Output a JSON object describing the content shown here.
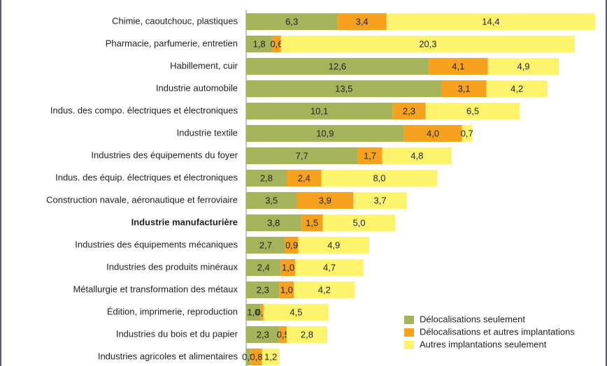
{
  "chart_data": {
    "type": "stacked-bar-horizontal",
    "categories": [
      "Chimie, caoutchouc, plastiques",
      "Pharmacie, parfumerie, entretien",
      "Habillement, cuir",
      "Industrie automobile",
      "Indus. des compo. électriques et électroniques",
      "Industrie textile",
      "Industries des équipements du foyer",
      "Indus. des équip. électriques et électroniques",
      "Construction navale, aéronautique et ferroviaire",
      "Industrie manufacturière",
      "Industries des équipements mécaniques",
      "Industries des produits minéraux",
      "Métallurgie et transformation des métaux",
      "Édition, imprimerie, reproduction",
      "Industries du bois et du papier",
      "Industries agricoles et alimentaires"
    ],
    "bold_category": 9,
    "legend": "bottom-right",
    "series": [
      {
        "name": "Délocalisations seulement",
        "color": "#a3b45a",
        "values": [
          6.3,
          1.8,
          12.6,
          13.5,
          10.1,
          10.9,
          7.7,
          2.8,
          3.5,
          3.8,
          2.7,
          2.4,
          2.3,
          1.0,
          2.3,
          0.3
        ],
        "value_labels": [
          "6,3",
          "1,8",
          "12,6",
          "13,5",
          "10,1",
          "10,9",
          "7,7",
          "2,8",
          "3,5",
          "3,8",
          "2,7",
          "2,4",
          "2,3",
          "1,0",
          "2,3",
          "0,3"
        ]
      },
      {
        "name": "Délocalisations et autres implantations",
        "color": "#f7a21e",
        "values": [
          3.4,
          0.6,
          4.1,
          3.1,
          2.3,
          4.0,
          1.7,
          2.4,
          3.9,
          1.5,
          0.9,
          1.0,
          1.0,
          0.2,
          0.5,
          0.8
        ],
        "value_labels": [
          "3,4",
          "0,6",
          "4,1",
          "3,1",
          "2,3",
          "4,0",
          "1,7",
          "2,4",
          "3,9",
          "1,5",
          "0,9",
          "1,0",
          "1,0",
          "0,2",
          "0,5",
          "0,8"
        ]
      },
      {
        "name": "Autres implantations seulement",
        "color": "#fdf36c",
        "values": [
          14.4,
          20.3,
          4.9,
          4.2,
          6.5,
          0.7,
          4.8,
          8.0,
          3.7,
          5.0,
          4.9,
          4.7,
          4.2,
          4.5,
          2.8,
          1.2
        ],
        "value_labels": [
          "14,4",
          "20,3",
          "4,9",
          "4,2",
          "6,5",
          "0,7",
          "4,8",
          "8,0",
          "3,7",
          "5,0",
          "4,9",
          "4,7",
          "4,2",
          "4,5",
          "2,8",
          "1,2"
        ]
      }
    ]
  }
}
